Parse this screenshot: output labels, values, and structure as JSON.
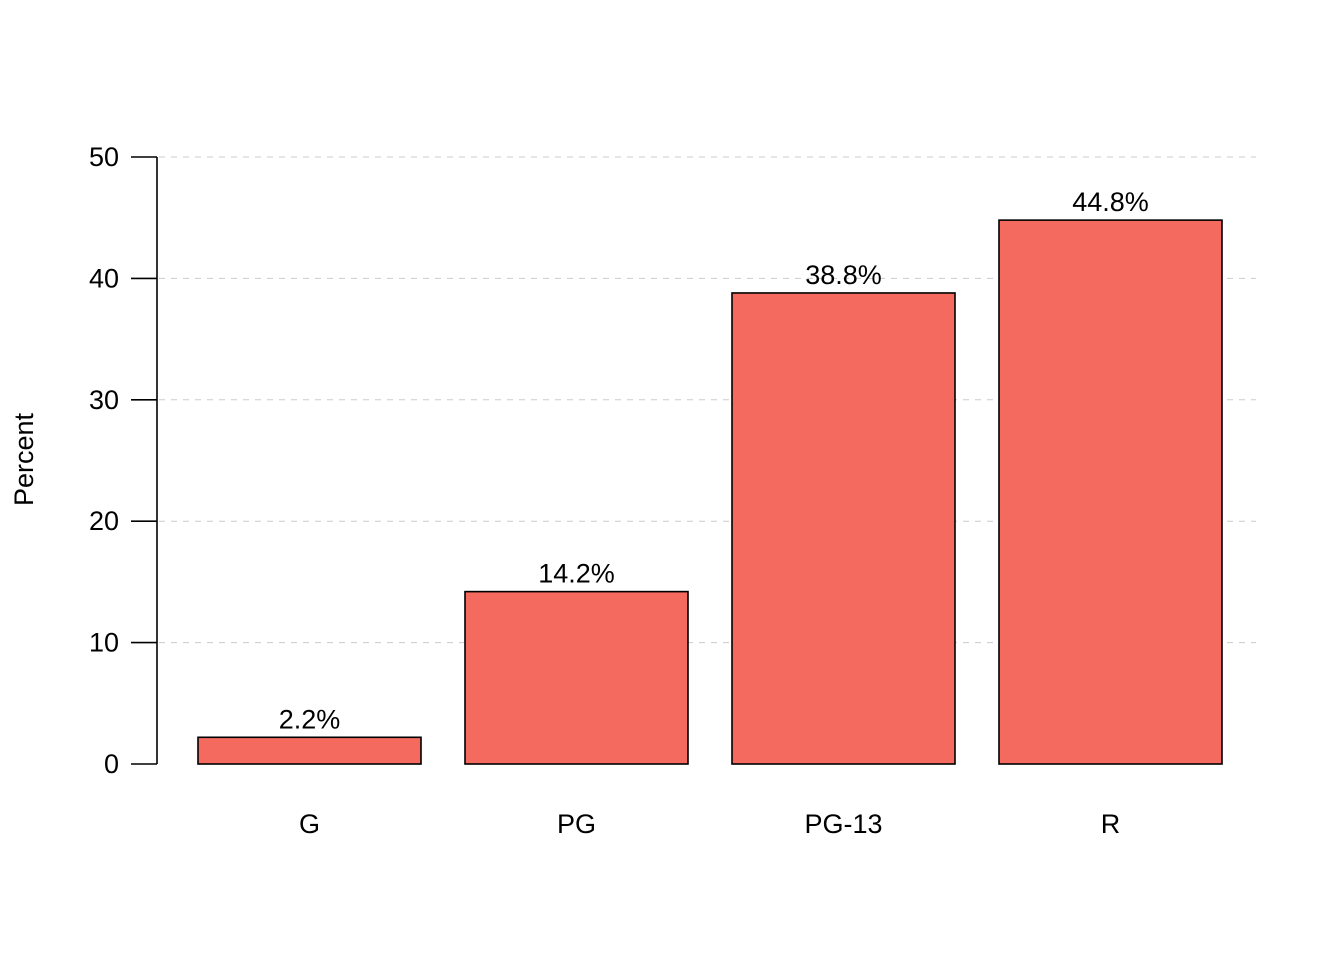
{
  "chart_data": {
    "type": "bar",
    "categories": [
      "G",
      "PG",
      "PG-13",
      "R"
    ],
    "values": [
      2.2,
      14.2,
      38.8,
      44.8
    ],
    "value_labels": [
      "2.2%",
      "14.2%",
      "38.8%",
      "44.8%"
    ],
    "title": "",
    "xlabel": "",
    "ylabel": "Percent",
    "ylim": [
      0,
      50
    ],
    "yticks": [
      0,
      10,
      20,
      30,
      40,
      50
    ],
    "ytick_labels": [
      "0",
      "10",
      "20",
      "30",
      "40",
      "50"
    ],
    "grid": "horizontal dashed",
    "legend": "none",
    "bar_color": "#F46A5E",
    "bar_edge_color": "#000000"
  }
}
